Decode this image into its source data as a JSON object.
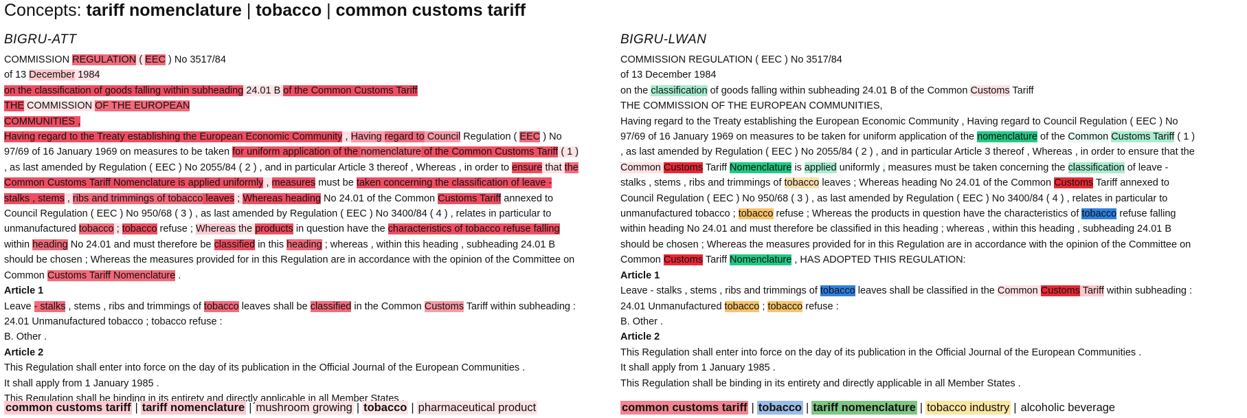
{
  "concepts": {
    "label": "Concepts:",
    "items": [
      "tariff nomenclature",
      "tobacco",
      "common customs tariff"
    ],
    "separator": "|"
  },
  "colors": {
    "att": [
      "#ffffff",
      "#fde3e6",
      "#fbc9cf",
      "#f89aa6",
      "#f26b7b",
      "#ee4e62"
    ],
    "lwan": {
      "t": "#2f7fe0",
      "t2": "#b9d2f2",
      "y": "#f7c36b",
      "y2": "#fbdfae",
      "r": "#e82935",
      "r2": "#fde3e6",
      "r3": "#fbc9cf",
      "g": "#22c984",
      "g2": "#a9ecd0",
      "g3": "#e6fbf2"
    }
  },
  "left": {
    "model": "BIGRU-ATT",
    "lines": [
      [
        [
          "COMMISSION ",
          0
        ],
        [
          "REGULATION",
          4
        ],
        [
          " ( ",
          1
        ],
        [
          "EEC",
          4
        ],
        [
          " ) No 3517/84",
          0
        ]
      ],
      [
        [
          "of 13 ",
          0
        ],
        [
          "December",
          2
        ],
        [
          " 1984",
          1
        ]
      ],
      [
        [
          "on the classification of goods falling within subheading",
          5
        ],
        [
          " 24.01 B ",
          1
        ],
        [
          "of the Common Customs Tariff",
          5
        ]
      ],
      [
        [
          "THE",
          5
        ],
        [
          " COMMISSION ",
          1
        ],
        [
          "OF THE EUROPEAN",
          4
        ]
      ],
      [
        [
          "COMMUNITIES ,",
          5
        ]
      ],
      [
        [
          "Having regard to the Treaty establishing the European Economic Community",
          5
        ],
        [
          " , ",
          1
        ],
        [
          "Having ",
          3
        ],
        [
          "regard to",
          4
        ],
        [
          " Council",
          3
        ],
        [
          " Regulation ( ",
          0
        ],
        [
          "EEC",
          4
        ],
        [
          " ) No",
          0
        ]
      ],
      [
        [
          "97/69 of 16 January 1969 on measures to be taken ",
          0
        ],
        [
          "for uniform application of the ",
          5
        ],
        [
          "nomenclature",
          4
        ],
        [
          " of the Common Customs Tariff",
          5
        ],
        [
          " ( 1 )",
          1
        ]
      ],
      [
        [
          " , as last amended by Regulation ( EEC ) No 2055/84 ( 2 ) , and in particular Article 3 thereof , Whereas , in order to ",
          0
        ],
        [
          "ensure",
          5
        ],
        [
          " that ",
          1
        ],
        [
          "the",
          4
        ]
      ],
      [
        [
          "Common Customs Tariff Nomenclature is applied uniformly",
          5
        ],
        [
          " , ",
          1
        ],
        [
          "measures",
          5
        ],
        [
          " must be ",
          0
        ],
        [
          "taken concerning the classification of leave -",
          5
        ]
      ],
      [
        [
          "stalks , stems",
          5
        ],
        [
          " , ",
          1
        ],
        [
          "ribs and trimmings of tobacco",
          4
        ],
        [
          " leaves",
          5
        ],
        [
          " ; ",
          1
        ],
        [
          "Whereas heading",
          5
        ],
        [
          " No 24.01 of the Common ",
          0
        ],
        [
          "Customs Tariff",
          5
        ],
        [
          " annexed to",
          0
        ]
      ],
      [
        [
          "Council Regulation ( EEC ) No 950/68 ( 3 ) , as last amended by Regulation ( EEC ) No 3400/84 ( 4 ) , relates in particular to",
          0
        ]
      ],
      [
        [
          "unmanufactured ",
          0
        ],
        [
          "tobacco",
          4
        ],
        [
          " ; ",
          1
        ],
        [
          "tobacco",
          5
        ],
        [
          " refuse ; ",
          0
        ],
        [
          "Whereas",
          2
        ],
        [
          " the ",
          1
        ],
        [
          "products",
          5
        ],
        [
          " in question have the ",
          0
        ],
        [
          "characteristics of tobacco refuse falling",
          5
        ]
      ],
      [
        [
          "within ",
          0
        ],
        [
          "heading",
          4
        ],
        [
          " No 24.01 and must therefore be ",
          0
        ],
        [
          "classified",
          5
        ],
        [
          " in this ",
          0
        ],
        [
          "heading",
          4
        ],
        [
          " ; whereas , within this heading , subheading 24.01 B",
          0
        ]
      ],
      [
        [
          "should be chosen ; Whereas the measures provided for in this Regulation are in accordance with the opinion of the Committee on",
          0
        ]
      ],
      [
        [
          "Common ",
          0
        ],
        [
          "Customs Tariff Nomenclature",
          4
        ],
        [
          " .",
          0
        ]
      ],
      [
        [
          "Article 1",
          0,
          "b"
        ]
      ],
      [
        [
          "Leave ",
          0
        ],
        [
          "- stalks",
          4
        ],
        [
          " , stems , ribs and trimmings of ",
          0
        ],
        [
          "tobacco",
          4
        ],
        [
          " leaves shall be ",
          0
        ],
        [
          "classified",
          4
        ],
        [
          " in the Common ",
          0
        ],
        [
          "Customs",
          3
        ],
        [
          " Tariff within subheading :",
          0
        ]
      ],
      [
        [
          "24.01 Unmanufactured tobacco ; tobacco refuse :",
          0
        ]
      ],
      [
        [
          "B. Other .",
          0
        ]
      ],
      [
        [
          "Article 2",
          0,
          "b"
        ]
      ],
      [
        [
          "This Regulation shall enter into force on the day of its publication in the Official Journal of the European Communities .",
          0
        ]
      ],
      [
        [
          "It shall apply from 1 January 1985 .",
          0
        ]
      ],
      [
        [
          "This Regulation shall be binding in its entirety and directly applicable in all Member States .",
          0
        ]
      ]
    ],
    "extracted": [
      [
        "common customs tariff",
        "#fbc9cf",
        true
      ],
      [
        "tariff nomenclature",
        "#fbc9cf",
        true
      ],
      [
        "mushroom growing",
        "#fde3e6",
        false
      ],
      [
        "tobacco",
        "#fde3e6",
        true
      ],
      [
        "pharmaceutical product",
        "#fde3e6",
        false
      ]
    ]
  },
  "right": {
    "model": "BIGRU-LWAN",
    "lines": [
      [
        [
          "COMMISSION REGULATION ( EEC ) No 3517/84",
          ""
        ]
      ],
      [
        [
          "of 13 December 1984",
          ""
        ]
      ],
      [
        [
          "on the ",
          ""
        ],
        [
          "classification",
          "g2"
        ],
        [
          " of goods falling within subheading 24.01 B of the Common ",
          ""
        ],
        [
          "Customs",
          "r2"
        ],
        [
          " Tariff",
          ""
        ]
      ],
      [
        [
          "THE COMMISSION OF THE EUROPEAN COMMUNITIES,",
          ""
        ]
      ],
      [
        [
          "Having regard to the Treaty establishing the European Economic Community , Having regard to Council Regulation ( EEC ) No",
          ""
        ]
      ],
      [
        [
          "97/69 of 16 January 1969 on measures to be taken for uniform application of the ",
          ""
        ],
        [
          "nomenclature",
          "g"
        ],
        [
          " of the ",
          ""
        ],
        [
          "Common",
          "g3"
        ],
        [
          " ",
          ""
        ],
        [
          "Customs Tariff",
          "g2"
        ],
        [
          " ( 1 )",
          ""
        ]
      ],
      [
        [
          " , as last amended by Regulation ( EEC ) No 2055/84 ( 2 ) , and in particular Article 3 thereof , Whereas , in order to ensure that the",
          ""
        ]
      ],
      [
        [
          "Common ",
          "r2"
        ],
        [
          "Customs",
          "r"
        ],
        [
          " Tariff ",
          ""
        ],
        [
          "Nomenclature",
          "g"
        ],
        [
          " is ",
          ""
        ],
        [
          "applied",
          "g2"
        ],
        [
          " uniformly ",
          ""
        ],
        [
          ",",
          "g3"
        ],
        [
          " measures must be taken concerning the ",
          ""
        ],
        [
          "classification",
          "g2"
        ],
        [
          " of leave -",
          ""
        ]
      ],
      [
        [
          "stalks , stems , ribs and trimmings of ",
          ""
        ],
        [
          "tobacco",
          "y2"
        ],
        [
          " leaves ; Whereas heading No 24.01 of the Common ",
          ""
        ],
        [
          "Customs",
          "r"
        ],
        [
          " Tariff annexed to",
          ""
        ]
      ],
      [
        [
          "Council Regulation ( EEC ) No 950/68 ( 3 ) , as last amended by Regulation ( EEC ) No 3400/84 ( 4 ) , relates in particular to",
          ""
        ]
      ],
      [
        [
          "unmanufactured tobacco ; ",
          ""
        ],
        [
          "tobacco",
          "y"
        ],
        [
          " refuse ; Whereas the products in question have the characteristics of ",
          ""
        ],
        [
          "tobacco",
          "t"
        ],
        [
          " refuse falling",
          ""
        ]
      ],
      [
        [
          "within heading No 24.01 and must therefore be classified in this heading ; whereas , within this heading , subheading 24.01 B",
          ""
        ]
      ],
      [
        [
          "should be chosen ; Whereas the measures provided for in this Regulation are in accordance with the opinion of the Committee on",
          ""
        ]
      ],
      [
        [
          "Common ",
          ""
        ],
        [
          "Customs",
          "r"
        ],
        [
          " Tariff ",
          ""
        ],
        [
          "Nomenclature",
          "g"
        ],
        [
          " , HAS ADOPTED THIS REGULATION:",
          ""
        ]
      ],
      [
        [
          "Article 1",
          "",
          "b"
        ]
      ],
      [
        [
          "Leave - stalks , stems , ribs and trimmings of ",
          ""
        ],
        [
          "tobacco",
          "t"
        ],
        [
          " leaves shall be classified in the ",
          ""
        ],
        [
          "Common ",
          "r2"
        ],
        [
          "Customs",
          "r"
        ],
        [
          " Tariff",
          "r3"
        ],
        [
          " within subheading :",
          ""
        ]
      ],
      [
        [
          "24.01 Unmanufactured ",
          ""
        ],
        [
          "tobacco",
          "y"
        ],
        [
          " ; ",
          ""
        ],
        [
          "tobacco",
          "y"
        ],
        [
          " refuse :",
          ""
        ]
      ],
      [
        [
          "B. Other .",
          ""
        ]
      ],
      [
        [
          "Article 2",
          "",
          "b"
        ]
      ],
      [
        [
          "This Regulation shall enter into force on the day of its publication in the Official Journal of the European Communities .",
          ""
        ]
      ],
      [
        [
          "It shall apply from 1 January 1985 .",
          ""
        ]
      ],
      [
        [
          "This Regulation shall be binding in its entirety and directly applicable in all Member States .",
          ""
        ]
      ]
    ],
    "extracted": [
      [
        "common customs tariff",
        "#f0868f",
        true
      ],
      [
        "tobacco",
        "#9bbbe8",
        true
      ],
      [
        "tariff nomenclature",
        "#7fc585",
        true
      ],
      [
        "tobacco industry",
        "#fbe7a3",
        false
      ],
      [
        "alcoholic beverage",
        "#ffffff",
        false
      ]
    ]
  }
}
